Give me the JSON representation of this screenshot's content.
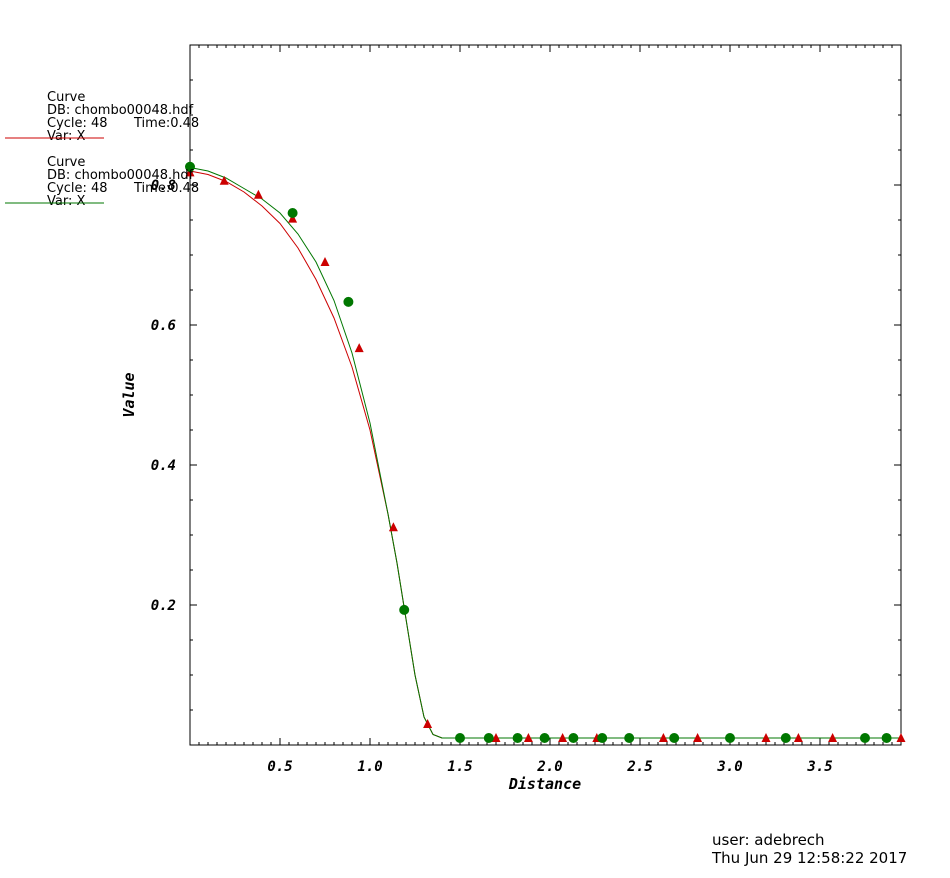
{
  "legend": [
    {
      "title": "Curve",
      "db": "DB: chombo00048.hdf",
      "cycle": "Cycle: 48",
      "time": "Time:0.48",
      "var": "Var: X",
      "color": "#cc0000"
    },
    {
      "title": "Curve",
      "db": "DB: chombo00048.hdf",
      "cycle": "Cycle: 48",
      "time": "Time:0.48",
      "var": "Var: X",
      "color": "#007700"
    }
  ],
  "user_info": {
    "user": "user: adebrech",
    "date": "Thu Jun 29 12:58:22 2017"
  },
  "chart_data": {
    "type": "line",
    "xlabel": "Distance",
    "ylabel": "Value",
    "xlim": [
      0,
      3.95
    ],
    "ylim": [
      0,
      1.0
    ],
    "x_ticks": [
      0.5,
      1.0,
      1.5,
      2.0,
      2.5,
      3.0,
      3.5
    ],
    "x_tick_labels": [
      "0.5",
      "1.0",
      "1.5",
      "2.0",
      "2.5",
      "3.0",
      "3.5"
    ],
    "y_ticks": [
      0.2,
      0.4,
      0.6,
      0.8
    ],
    "y_tick_labels": [
      "0.2",
      "0.4",
      "0.6",
      "0.8"
    ],
    "grid": false,
    "series": [
      {
        "color": "#cc0000",
        "marker": "triangle",
        "x": [
          0,
          0.1,
          0.2,
          0.3,
          0.4,
          0.5,
          0.6,
          0.7,
          0.8,
          0.9,
          1.0,
          1.1,
          1.15,
          1.2,
          1.25,
          1.3,
          1.35,
          1.4,
          1.5,
          2.0,
          3.0,
          3.95
        ],
        "y": [
          0.82,
          0.815,
          0.805,
          0.79,
          0.77,
          0.745,
          0.71,
          0.665,
          0.61,
          0.54,
          0.45,
          0.33,
          0.26,
          0.18,
          0.1,
          0.04,
          0.015,
          0.01,
          0.01,
          0.01,
          0.01,
          0.01
        ]
      },
      {
        "color": "#007700",
        "marker": "circle",
        "x": [
          0,
          0.1,
          0.2,
          0.3,
          0.4,
          0.5,
          0.6,
          0.7,
          0.8,
          0.9,
          1.0,
          1.1,
          1.15,
          1.2,
          1.25,
          1.3,
          1.35,
          1.4,
          1.5,
          2.0,
          3.0,
          3.95
        ],
        "y": [
          0.825,
          0.82,
          0.81,
          0.795,
          0.78,
          0.76,
          0.73,
          0.69,
          0.635,
          0.56,
          0.46,
          0.33,
          0.26,
          0.18,
          0.1,
          0.04,
          0.015,
          0.01,
          0.01,
          0.01,
          0.01,
          0.01
        ]
      }
    ],
    "markers": [
      {
        "series": 0,
        "x": [
          0.0,
          0.19,
          0.38,
          0.57,
          0.75,
          0.94,
          1.13,
          1.32,
          1.7,
          1.88,
          2.07,
          2.26,
          2.63,
          2.82,
          3.2,
          3.38,
          3.57,
          3.95
        ],
        "y": [
          0.818,
          0.806,
          0.786,
          0.752,
          0.69,
          0.567,
          0.311,
          0.03,
          0.01,
          0.01,
          0.01,
          0.01,
          0.01,
          0.01,
          0.01,
          0.01,
          0.01,
          0.01
        ]
      },
      {
        "series": 1,
        "x": [
          0.0,
          0.57,
          0.88,
          1.19,
          1.5,
          1.66,
          1.82,
          1.97,
          2.13,
          2.29,
          2.44,
          2.69,
          3.0,
          3.31,
          3.75,
          3.87
        ],
        "y": [
          0.826,
          0.76,
          0.633,
          0.193,
          0.01,
          0.01,
          0.01,
          0.01,
          0.01,
          0.01,
          0.01,
          0.01,
          0.01,
          0.01,
          0.01,
          0.01
        ]
      }
    ]
  }
}
